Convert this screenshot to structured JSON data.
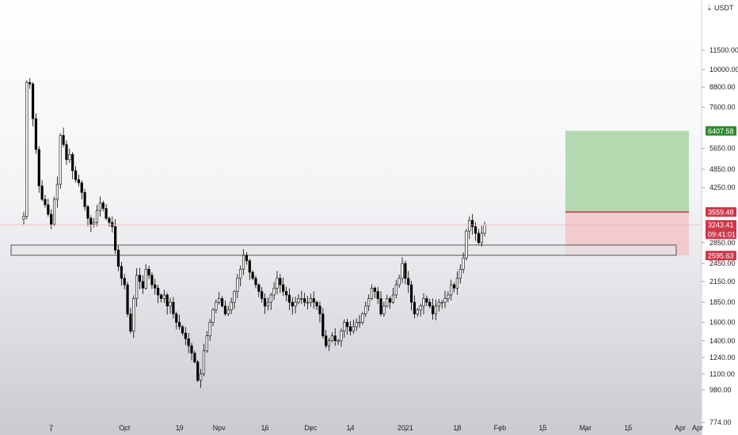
{
  "chart_data": {
    "type": "candlestick",
    "currency_label": "USDT",
    "yscale": "log",
    "ylim": [
      740,
      15800
    ],
    "y_ticks": [
      774.0,
      980.0,
      1100.0,
      1240.0,
      1400.0,
      1600.0,
      1850.0,
      2150.0,
      2450.0,
      2850.0,
      4250.0,
      4850.0,
      5650.0,
      7600.0,
      8800.0,
      10000.0,
      11500.0
    ],
    "y_tick_labels": [
      "774.00",
      "980.00",
      "1100.00",
      "1240.00",
      "1400.00",
      "1600.00",
      "1850.00",
      "2150.00",
      "2450.00",
      "2850.00",
      "4250.00",
      "4850.00",
      "5650.00",
      "7600.00",
      "8800.00",
      "10000.00",
      "11500.00"
    ],
    "x_tick_labels": [
      "7",
      "Oct",
      "19",
      "Nov",
      "16",
      "Dec",
      "14",
      "2021",
      "18",
      "Feb",
      "15",
      "Mar",
      "15",
      "Apr"
    ],
    "x_tick_dates": [
      "2020-09-07",
      "2020-10-01",
      "2020-10-19",
      "2020-11-01",
      "2020-11-16",
      "2020-12-01",
      "2020-12-14",
      "2021-01-01",
      "2021-01-18",
      "2021-02-01",
      "2021-02-15",
      "2021-03-01",
      "2021-03-15",
      "2021-04-01"
    ],
    "candle_closes": [
      3450,
      9100,
      9000,
      7000,
      5600,
      4300,
      3900,
      3750,
      3500,
      3250,
      3900,
      4350,
      6200,
      5800,
      5200,
      5400,
      4800,
      4500,
      4400,
      4100,
      3700,
      3400,
      3250,
      3300,
      3600,
      3800,
      3650,
      3400,
      3300,
      3200,
      2700,
      2400,
      2200,
      2100,
      1700,
      1500,
      1900,
      2250,
      2150,
      2050,
      2350,
      2250,
      2100,
      2050,
      1950,
      1900,
      1950,
      1800,
      1850,
      1700,
      1600,
      1550,
      1480,
      1420,
      1350,
      1280,
      1200,
      1050,
      1100,
      1300,
      1450,
      1600,
      1750,
      1850,
      1900,
      1800,
      1700,
      1750,
      1850,
      2000,
      2200,
      2350,
      2600,
      2500,
      2300,
      2200,
      2100,
      2000,
      1900,
      1800,
      1850,
      1950,
      2050,
      2200,
      2100,
      2000,
      1950,
      1850,
      1800,
      1850,
      1900,
      1900,
      1850,
      1850,
      1900,
      1850,
      1800,
      1700,
      1450,
      1350,
      1400,
      1450,
      1400,
      1400,
      1500,
      1600,
      1550,
      1500,
      1550,
      1600,
      1600,
      1700,
      1800,
      1900,
      2050,
      2000,
      1900,
      1700,
      1800,
      1900,
      1850,
      1950,
      2100,
      2200,
      2450,
      2200,
      2100,
      1850,
      1700,
      1750,
      1800,
      1900,
      1850,
      1800,
      1700,
      1800,
      1850,
      1850,
      1900,
      1950,
      2100,
      2050,
      2200,
      2350,
      2550,
      3100,
      3350,
      3200,
      3050,
      2850,
      3050,
      3243.41
    ],
    "candle_color_scheme": {
      "up": "#ffffff",
      "down": "#000000",
      "wick": "#000000"
    },
    "support_zone": {
      "top": 2800,
      "bottom": 2600,
      "border": "#555555",
      "fill": "#e5e6e8"
    },
    "position": {
      "target": 6407.58,
      "target_label": "6407.58",
      "entry": 3559.48,
      "entry_label": "3559.48",
      "stop": 2595.63,
      "stop_label": "2595.63",
      "profit_fill": "#a8d5a5",
      "loss_fill": "#f2c4c8"
    },
    "current_price": 3243.41,
    "current_price_label": "3243.41",
    "countdown_label": "09:41:01",
    "colors": {
      "profit_tag": "#2e8b2e",
      "loss_tag": "#d0364a",
      "price_tag": "#e89aa6",
      "price_line": "#f0b8c0"
    }
  }
}
